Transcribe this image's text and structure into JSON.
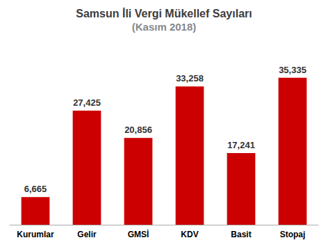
{
  "chart_data": {
    "type": "bar",
    "title": "Samsun İli Vergi Mükellef Sayıları",
    "subtitle": "(Kasım 2018)",
    "categories": [
      "Kurumlar",
      "Gelir",
      "GMSİ",
      "KDV",
      "Basit",
      "Stopaj"
    ],
    "values": [
      6665,
      27425,
      20856,
      33258,
      17241,
      35335
    ],
    "value_labels": [
      "6,665",
      "27,425",
      "20,856",
      "33,258",
      "17,241",
      "35,335"
    ],
    "data_labels": true,
    "color": "#cc0000",
    "ylim": [
      0,
      42000
    ],
    "grid": false,
    "tick_labels": "x"
  }
}
